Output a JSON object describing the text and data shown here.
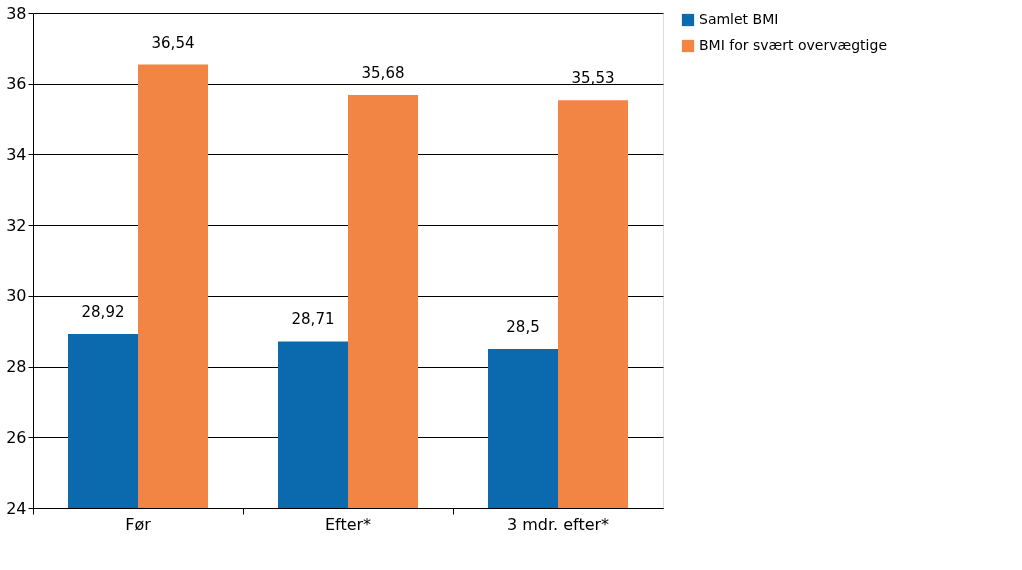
{
  "chart_data": {
    "type": "bar",
    "categories": [
      "Før",
      "Efter*",
      "3 mdr. efter*"
    ],
    "series": [
      {
        "name": "Samlet BMI",
        "color": "#0a6aad",
        "values": [
          28.92,
          28.71,
          28.5
        ],
        "value_labels": [
          "28,92",
          "28,71",
          "28,5"
        ]
      },
      {
        "name": "BMI for svært overvægtige",
        "color": "#f28444",
        "values": [
          36.54,
          35.68,
          35.53
        ],
        "value_labels": [
          "36,54",
          "35,68",
          "35,53"
        ]
      }
    ],
    "ylim": [
      24,
      38
    ],
    "yticks": [
      24,
      26,
      28,
      30,
      32,
      34,
      36,
      38
    ],
    "grid": "y",
    "legend": "top right"
  }
}
